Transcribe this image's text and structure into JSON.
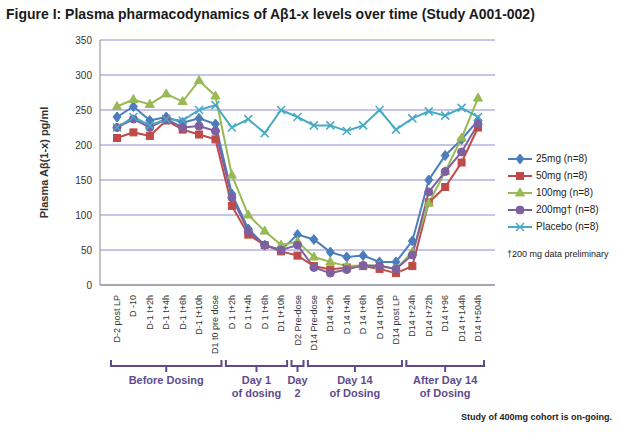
{
  "chart_data": {
    "type": "line",
    "title": "Figure I: Plasma pharmacodynamics of Aβ1-x levels over time (Study A001-002)",
    "y_label": "Plasma Aβ(1-x) pg/ml",
    "categories": [
      "D-2 post LP",
      "D -10",
      "D-1 t+2h",
      "D-1 t+4h",
      "D-1 t+6h",
      "D-1 t+10h",
      "D1 t0 pre dose",
      "D 1 t+2h",
      "D 1 t+4h",
      "D 1 t+6h",
      "D1 t+10h",
      "D2 Pre-dose",
      "D14 Pre-dose",
      "D14 t+2h",
      "D 14 t+4h",
      "D 14 t+6h",
      "D 14 t+10h",
      "D14 post LP",
      "D14 t+24h",
      "D14 t+72h",
      "D14 t+96",
      "D14 t+144h",
      "D14 t+504h"
    ],
    "series": [
      {
        "name": "25mg (n=8)",
        "color": "#4A7EBB",
        "marker": "diamond",
        "values": [
          240,
          255,
          235,
          240,
          232,
          238,
          230,
          130,
          80,
          57,
          50,
          72,
          65,
          47,
          40,
          42,
          33,
          33,
          63,
          150,
          185,
          208,
          235
        ]
      },
      {
        "name": "50mg (n=8)",
        "color": "#BE4B48",
        "marker": "square",
        "values": [
          210,
          218,
          213,
          235,
          222,
          215,
          208,
          113,
          72,
          57,
          48,
          42,
          27,
          22,
          25,
          27,
          23,
          17,
          27,
          118,
          140,
          175,
          225
        ]
      },
      {
        "name": "100mg (n=8)",
        "color": "#98B954",
        "marker": "triangle",
        "values": [
          255,
          265,
          258,
          273,
          262,
          292,
          270,
          157,
          100,
          77,
          57,
          62,
          40,
          33,
          27,
          28,
          28,
          23,
          47,
          117,
          162,
          210,
          267
        ]
      },
      {
        "name": "200mg† (n=8)",
        "color": "#7D60A0",
        "marker": "circle",
        "values": [
          225,
          237,
          225,
          237,
          225,
          227,
          220,
          125,
          77,
          57,
          50,
          57,
          25,
          17,
          22,
          28,
          27,
          23,
          43,
          133,
          162,
          190,
          230
        ]
      },
      {
        "name": "Placebo (n=8)",
        "color": "#46AAC5",
        "marker": "x",
        "values": [
          225,
          240,
          228,
          237,
          235,
          250,
          257,
          225,
          237,
          217,
          250,
          240,
          228,
          228,
          220,
          228,
          250,
          222,
          238,
          248,
          242,
          253,
          240
        ]
      }
    ],
    "ylim": [
      0,
      350
    ],
    "yticks": [
      0,
      50,
      100,
      150,
      200,
      250,
      300,
      350
    ],
    "grid": true,
    "legend": "right",
    "legend_note": "†200 mg data preliminary",
    "groups": [
      {
        "label": [
          "Before Dosing"
        ],
        "count": 7
      },
      {
        "label": [
          "Day 1",
          "of dosing"
        ],
        "count": 4
      },
      {
        "label": [
          "Day",
          "2"
        ],
        "count": 1
      },
      {
        "label": [
          "Day 14",
          "of Dosing"
        ],
        "count": 6
      },
      {
        "label": [
          "After Day 14",
          "of Dosing"
        ],
        "count": 5
      }
    ],
    "footnote": "Study of 400mg cohort is on-going."
  }
}
